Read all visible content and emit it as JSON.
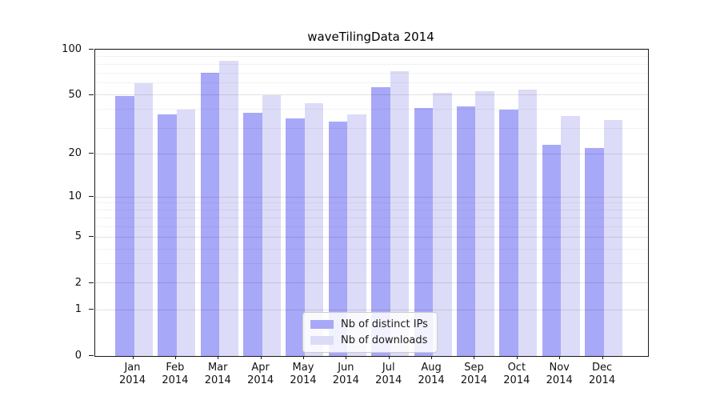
{
  "chart_data": {
    "type": "bar",
    "title": "waveTilingData 2014",
    "categories": [
      "Jan",
      "Feb",
      "Mar",
      "Apr",
      "May",
      "Jun",
      "Jul",
      "Aug",
      "Sep",
      "Oct",
      "Nov",
      "Dec"
    ],
    "category_year": "2014",
    "series": [
      {
        "name": "Nb of distinct IPs",
        "color": "#a8a8f8",
        "values": [
          49,
          37,
          70,
          38,
          35,
          33,
          56,
          41,
          42,
          40,
          23,
          22
        ]
      },
      {
        "name": "Nb of downloads",
        "color": "#dcdcf8",
        "values": [
          60,
          40,
          84,
          50,
          44,
          37,
          72,
          52,
          53,
          54,
          36,
          34
        ]
      }
    ],
    "xlabel": "",
    "ylabel": "",
    "yscale": "log1p",
    "ylim": [
      0,
      100
    ],
    "y_ticks": [
      0,
      1,
      2,
      5,
      10,
      20,
      50,
      100
    ],
    "y_gridlines": [
      1,
      2,
      3,
      4,
      5,
      6,
      7,
      8,
      9,
      10,
      20,
      30,
      40,
      50,
      60,
      70,
      80,
      90,
      100
    ],
    "grid": "horizontal",
    "legend_position": "lower center"
  }
}
